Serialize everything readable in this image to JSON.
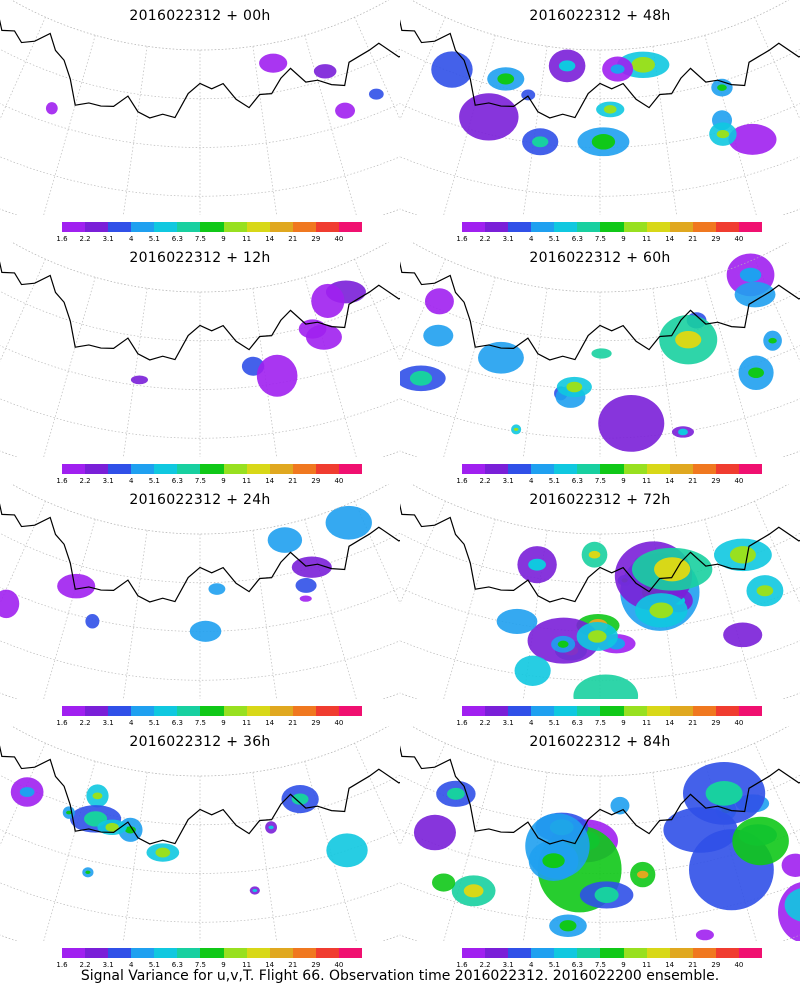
{
  "caption": "Signal Variance for u,v,T. Flight 66. Observation time 2016022312. 2016022200 ensemble.",
  "colorbar": {
    "ticks": [
      "1.6",
      "2.2",
      "3.1",
      "4",
      "5.1",
      "6.3",
      "7.5",
      "9",
      "11",
      "14",
      "21",
      "29",
      "40"
    ],
    "colors": [
      "#a020f0",
      "#7a1fd8",
      "#3050e8",
      "#1fa0f0",
      "#10c8e0",
      "#18d0a0",
      "#10c818",
      "#98e020",
      "#d8d818",
      "#e0a820",
      "#f07820",
      "#f03c30",
      "#f01070"
    ]
  },
  "chart_data": [
    {
      "type": "heatmap",
      "title": "2016022312 + 00h",
      "forecast_hour": 0,
      "activity": 0.08
    },
    {
      "type": "heatmap",
      "title": "2016022312 + 48h",
      "forecast_hour": 48,
      "activity": 0.5
    },
    {
      "type": "heatmap",
      "title": "2016022312 + 12h",
      "forecast_hour": 12,
      "activity": 0.18
    },
    {
      "type": "heatmap",
      "title": "2016022312 + 60h",
      "forecast_hour": 60,
      "activity": 0.65
    },
    {
      "type": "heatmap",
      "title": "2016022312 + 24h",
      "forecast_hour": 24,
      "activity": 0.3
    },
    {
      "type": "heatmap",
      "title": "2016022312 + 72h",
      "forecast_hour": 72,
      "activity": 0.8
    },
    {
      "type": "heatmap",
      "title": "2016022312 + 36h",
      "forecast_hour": 36,
      "activity": 0.42
    },
    {
      "type": "heatmap",
      "title": "2016022312 + 84h",
      "forecast_hour": 84,
      "activity": 0.95
    }
  ]
}
